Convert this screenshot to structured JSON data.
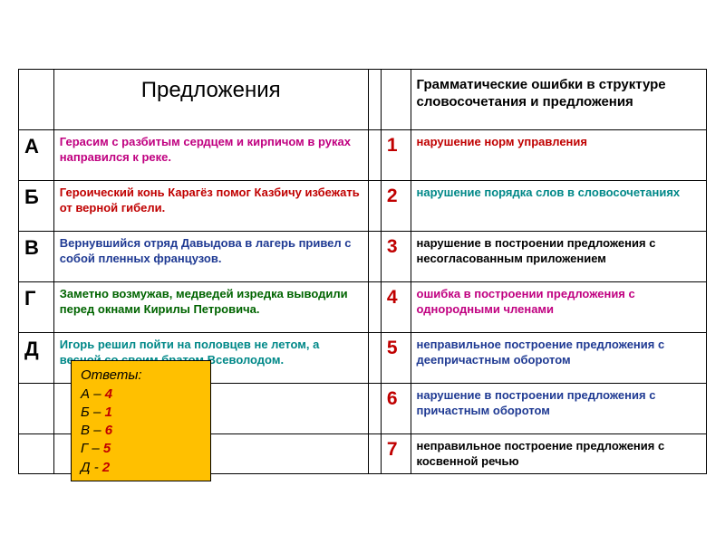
{
  "headers": {
    "left": "Предложения",
    "right": "Грамматические ошибки в структуре словосочетания и предложения"
  },
  "rows": [
    {
      "letter": "А",
      "sentence": "Герасим с разбитым сердцем и кирпичом в руках направился к реке.",
      "sentence_color": "#c00080",
      "number": "1",
      "error": "нарушение норм управления",
      "error_color": "#c00000"
    },
    {
      "letter": "Б",
      "sentence": "Героический конь Карагёз помог Казбичу избежать от верной гибели.",
      "sentence_color": "#c00000",
      "number": "2",
      "error": "нарушение порядка слов в словосочетаниях",
      "error_color": "#008888"
    },
    {
      "letter": "В",
      "sentence": "Вернувшийся отряд Давыдова в лагерь привел с собой пленных французов.",
      "sentence_color": "#1f3a93",
      "number": "3",
      "error": "нарушение в построении предложения с несогласованным приложением",
      "error_color": "#000000"
    },
    {
      "letter": "Г",
      "sentence": "Заметно возмужав, медведей изредка выводили перед окнами Кирилы Петровича.",
      "sentence_color": "#006400",
      "number": "4",
      "error": "ошибка в построении предложения с однородными членами",
      "error_color": "#c00080"
    },
    {
      "letter": "Д",
      "sentence": "Игорь решил пойти на половцев не летом, а весной со своим братом Всеволодом.",
      "sentence_color": "#008888",
      "number": "5",
      "error": "неправильное построение предложения с деепричастным оборотом",
      "error_color": "#1f3a93"
    }
  ],
  "extra_rows": [
    {
      "number": "6",
      "error": "нарушение в построении предложения с причастным оборотом",
      "error_color": "#1f3a93"
    },
    {
      "number": "7",
      "error": "неправильное построение предложения с косвенной речью",
      "error_color": "#000000"
    }
  ],
  "answers": {
    "title": "Ответы:",
    "items": [
      {
        "letter": "А",
        "sep": "–",
        "num": "4"
      },
      {
        "letter": "Б",
        "sep": "–",
        "num": "1"
      },
      {
        "letter": "В",
        "sep": "–",
        "num": "6"
      },
      {
        "letter": "Г",
        "sep": "–",
        "num": "5"
      },
      {
        "letter": "Д",
        "sep": "-",
        "num": "2"
      }
    ]
  },
  "colors": {
    "answer_bg": "#ffc000",
    "number_color": "#c00000"
  }
}
